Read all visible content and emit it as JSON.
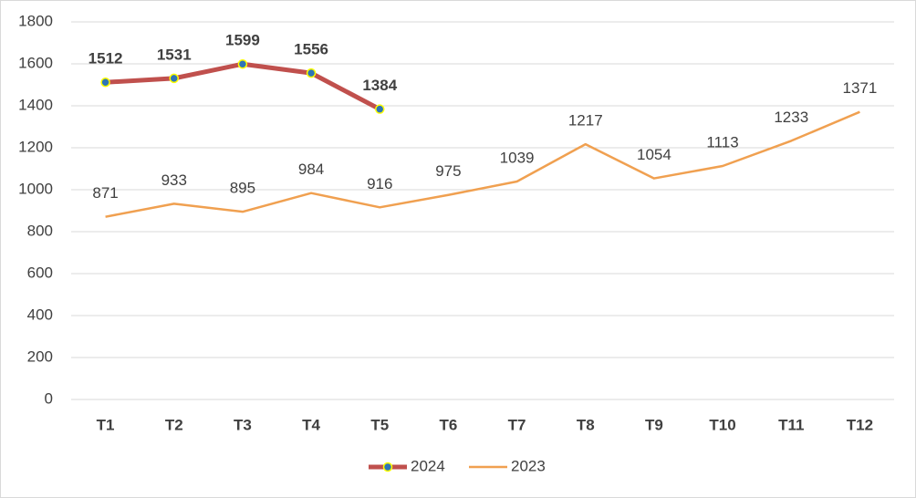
{
  "chart_data": {
    "type": "line",
    "categories": [
      "T1",
      "T2",
      "T3",
      "T4",
      "T5",
      "T6",
      "T7",
      "T8",
      "T9",
      "T10",
      "T11",
      "T12"
    ],
    "series": [
      {
        "name": "2024",
        "color": "#c0504d",
        "marker": true,
        "marker_color": "#2e75b6",
        "marker_edge": "#ffff00",
        "bold_labels": true,
        "values": [
          1512,
          1531,
          1599,
          1556,
          1384,
          null,
          null,
          null,
          null,
          null,
          null,
          null
        ]
      },
      {
        "name": "2023",
        "color": "#f0a050",
        "marker": false,
        "bold_labels": false,
        "values": [
          871,
          933,
          895,
          984,
          916,
          975,
          1039,
          1217,
          1054,
          1113,
          1233,
          1371
        ]
      }
    ],
    "ylim": [
      0,
      1800
    ],
    "yticks": [
      0,
      200,
      400,
      600,
      800,
      1000,
      1200,
      1400,
      1600,
      1800
    ],
    "grid": true,
    "legend": "bottom"
  }
}
